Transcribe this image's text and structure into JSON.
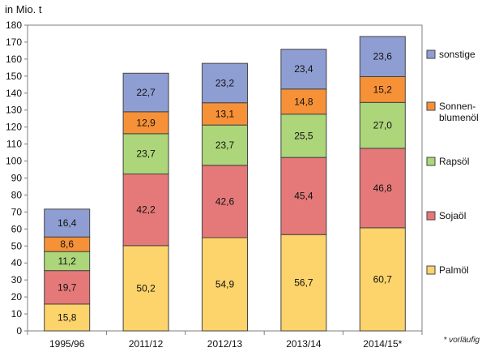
{
  "chart_data": {
    "type": "bar",
    "stacked": true,
    "ylabel": "in Mio. t",
    "ylim": [
      0,
      180
    ],
    "ytick_step": 10,
    "grid": false,
    "legend_position": "right",
    "categories": [
      "1995/96",
      "2011/12",
      "2012/13",
      "2013/14",
      "2014/15*"
    ],
    "series": [
      {
        "name": "Palmöl",
        "color": "#FDD46B",
        "values": [
          15.8,
          50.2,
          54.9,
          56.7,
          60.7
        ],
        "labels": [
          "15,8",
          "50,2",
          "54,9",
          "56,7",
          "60,7"
        ]
      },
      {
        "name": "Sojaöl",
        "color": "#E57979",
        "values": [
          19.7,
          42.2,
          42.6,
          45.4,
          46.8
        ],
        "labels": [
          "19,7",
          "42,2",
          "42,6",
          "45,4",
          "46,8"
        ]
      },
      {
        "name": "Rapsöl",
        "color": "#ADD57A",
        "values": [
          11.2,
          23.7,
          23.7,
          25.5,
          27.0
        ],
        "labels": [
          "11,2",
          "23,7",
          "23,7",
          "25,5",
          "27,0"
        ]
      },
      {
        "name": "Sonnen-\nblumenöl",
        "color": "#F79137",
        "values": [
          8.6,
          12.9,
          13.1,
          14.8,
          15.2
        ],
        "labels": [
          "8,6",
          "12,9",
          "13,1",
          "14,8",
          "15,2"
        ]
      },
      {
        "name": "sonstige",
        "color": "#8F9ED2",
        "values": [
          16.4,
          22.7,
          23.2,
          23.4,
          23.6
        ],
        "labels": [
          "16,4",
          "22,7",
          "23,2",
          "23,4",
          "23,6"
        ]
      }
    ],
    "footnote": "* vorläufig"
  }
}
